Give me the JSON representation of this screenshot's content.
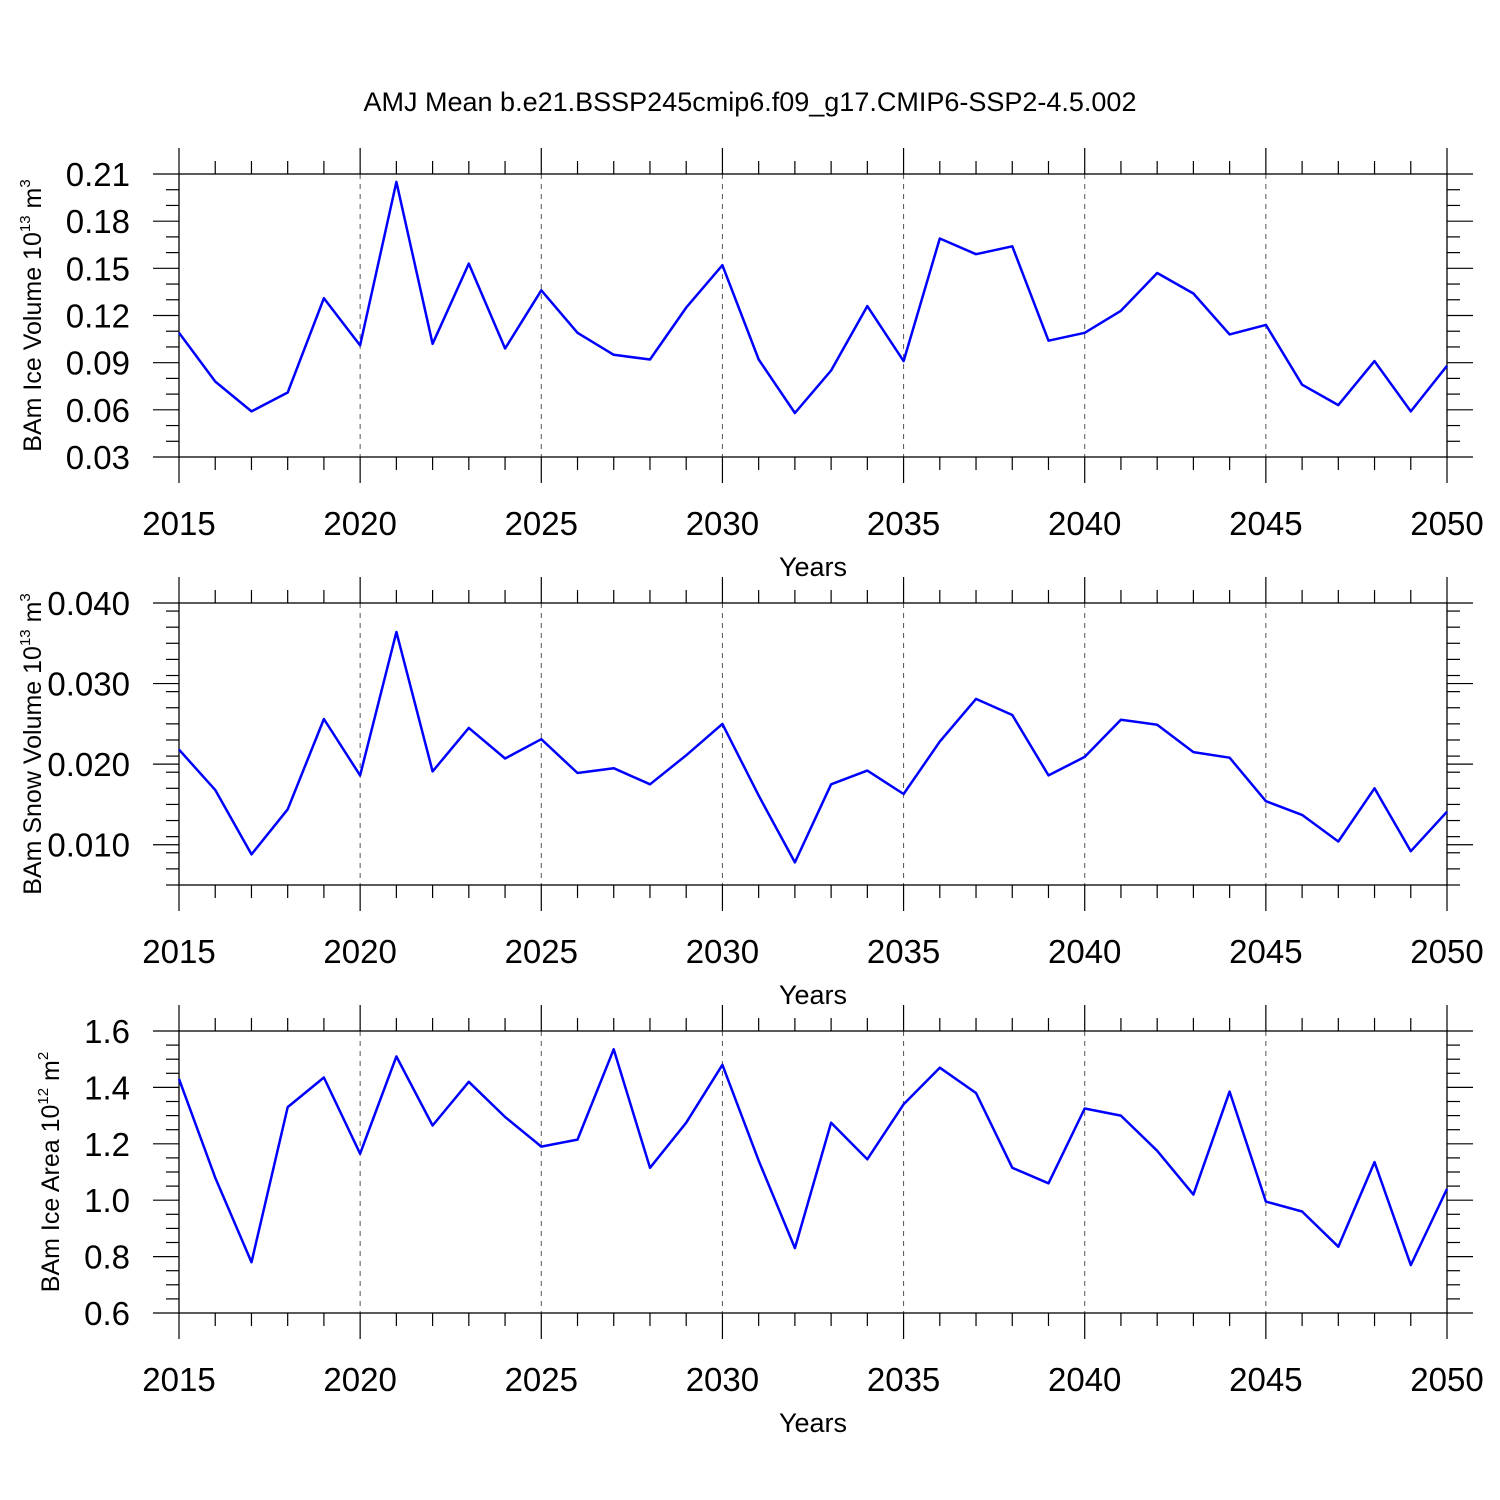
{
  "figure_title": "AMJ Mean b.e21.BSSP245cmip6.f09_g17.CMIP6-SSP2-4.5.002",
  "chart_data": [
    {
      "type": "line",
      "xlabel": "Years",
      "ylabel": {
        "base": "BAm Ice Volume 10",
        "exp": "13",
        "unit": " m",
        "unit_exp": "3"
      },
      "xlim": [
        2015,
        2050
      ],
      "ylim": [
        0.03,
        0.21
      ],
      "xticks": [
        2015,
        2020,
        2025,
        2030,
        2035,
        2040,
        2045,
        2050
      ],
      "xtick_labels": [
        "2015",
        "2020",
        "2025",
        "2030",
        "2035",
        "2040",
        "2045",
        "2050"
      ],
      "yticks": [
        0.03,
        0.06,
        0.09,
        0.12,
        0.15,
        0.18,
        0.21
      ],
      "ytick_labels": [
        "0.03",
        "0.06",
        "0.09",
        "0.12",
        "0.15",
        "0.18",
        "0.21"
      ],
      "yminor_step": 0.01,
      "grid_x": true,
      "x": [
        2015,
        2016,
        2017,
        2018,
        2019,
        2020,
        2021,
        2022,
        2023,
        2024,
        2025,
        2026,
        2027,
        2028,
        2029,
        2030,
        2031,
        2032,
        2033,
        2034,
        2035,
        2036,
        2037,
        2038,
        2039,
        2040,
        2041,
        2042,
        2043,
        2044,
        2045,
        2046,
        2047,
        2048,
        2049,
        2050
      ],
      "series": [
        {
          "name": "BAm Ice Volume",
          "color": "#0000ff",
          "values": [
            0.109,
            0.078,
            0.059,
            0.071,
            0.131,
            0.101,
            0.205,
            0.102,
            0.153,
            0.099,
            0.136,
            0.109,
            0.095,
            0.092,
            0.125,
            0.152,
            0.092,
            0.058,
            0.085,
            0.126,
            0.091,
            0.169,
            0.159,
            0.164,
            0.104,
            0.109,
            0.123,
            0.147,
            0.134,
            0.108,
            0.114,
            0.076,
            0.063,
            0.091,
            0.059,
            0.088
          ]
        }
      ]
    },
    {
      "type": "line",
      "xlabel": "Years",
      "ylabel": {
        "base": "BAm Snow Volume 10",
        "exp": "13",
        "unit": " m",
        "unit_exp": "3"
      },
      "xlim": [
        2015,
        2050
      ],
      "ylim": [
        0.005,
        0.04
      ],
      "xticks": [
        2015,
        2020,
        2025,
        2030,
        2035,
        2040,
        2045,
        2050
      ],
      "xtick_labels": [
        "2015",
        "2020",
        "2025",
        "2030",
        "2035",
        "2040",
        "2045",
        "2050"
      ],
      "yticks": [
        0.01,
        0.02,
        0.03,
        0.04
      ],
      "ytick_labels": [
        "0.010",
        "0.020",
        "0.030",
        "0.040"
      ],
      "yminor_step": 0.002,
      "grid_x": true,
      "x": [
        2015,
        2016,
        2017,
        2018,
        2019,
        2020,
        2021,
        2022,
        2023,
        2024,
        2025,
        2026,
        2027,
        2028,
        2029,
        2030,
        2031,
        2032,
        2033,
        2034,
        2035,
        2036,
        2037,
        2038,
        2039,
        2040,
        2041,
        2042,
        2043,
        2044,
        2045,
        2046,
        2047,
        2048,
        2049,
        2050
      ],
      "series": [
        {
          "name": "BAm Snow Volume",
          "color": "#0000ff",
          "values": [
            0.0218,
            0.0168,
            0.0088,
            0.0144,
            0.0256,
            0.0186,
            0.0364,
            0.0191,
            0.0245,
            0.0207,
            0.0231,
            0.0189,
            0.0195,
            0.0175,
            0.0211,
            0.025,
            0.0161,
            0.0078,
            0.0175,
            0.0192,
            0.0163,
            0.0228,
            0.0281,
            0.0261,
            0.0186,
            0.0209,
            0.0255,
            0.0249,
            0.0215,
            0.0208,
            0.0154,
            0.0137,
            0.0104,
            0.017,
            0.0092,
            0.0141
          ]
        }
      ]
    },
    {
      "type": "line",
      "xlabel": "Years",
      "ylabel": {
        "base": "BAm Ice Area 10",
        "exp": "12",
        "unit": " m",
        "unit_exp": "2"
      },
      "xlim": [
        2015,
        2050
      ],
      "ylim": [
        0.6,
        1.6
      ],
      "xticks": [
        2015,
        2020,
        2025,
        2030,
        2035,
        2040,
        2045,
        2050
      ],
      "xtick_labels": [
        "2015",
        "2020",
        "2025",
        "2030",
        "2035",
        "2040",
        "2045",
        "2050"
      ],
      "yticks": [
        0.6,
        0.8,
        1.0,
        1.2,
        1.4,
        1.6
      ],
      "ytick_labels": [
        "0.6",
        "0.8",
        "1.0",
        "1.2",
        "1.4",
        "1.6"
      ],
      "yminor_step": 0.05,
      "grid_x": true,
      "x": [
        2015,
        2016,
        2017,
        2018,
        2019,
        2020,
        2021,
        2022,
        2023,
        2024,
        2025,
        2026,
        2027,
        2028,
        2029,
        2030,
        2031,
        2032,
        2033,
        2034,
        2035,
        2036,
        2037,
        2038,
        2039,
        2040,
        2041,
        2042,
        2043,
        2044,
        2045,
        2046,
        2047,
        2048,
        2049,
        2050
      ],
      "series": [
        {
          "name": "BAm Ice Area",
          "color": "#0000ff",
          "values": [
            1.43,
            1.08,
            0.78,
            1.33,
            1.435,
            1.165,
            1.51,
            1.265,
            1.42,
            1.295,
            1.19,
            1.215,
            1.535,
            1.115,
            1.275,
            1.48,
            1.14,
            0.83,
            1.275,
            1.145,
            1.34,
            1.47,
            1.38,
            1.115,
            1.06,
            1.325,
            1.3,
            1.175,
            1.02,
            1.385,
            0.995,
            0.96,
            0.835,
            1.135,
            0.77,
            1.04
          ]
        }
      ]
    }
  ]
}
